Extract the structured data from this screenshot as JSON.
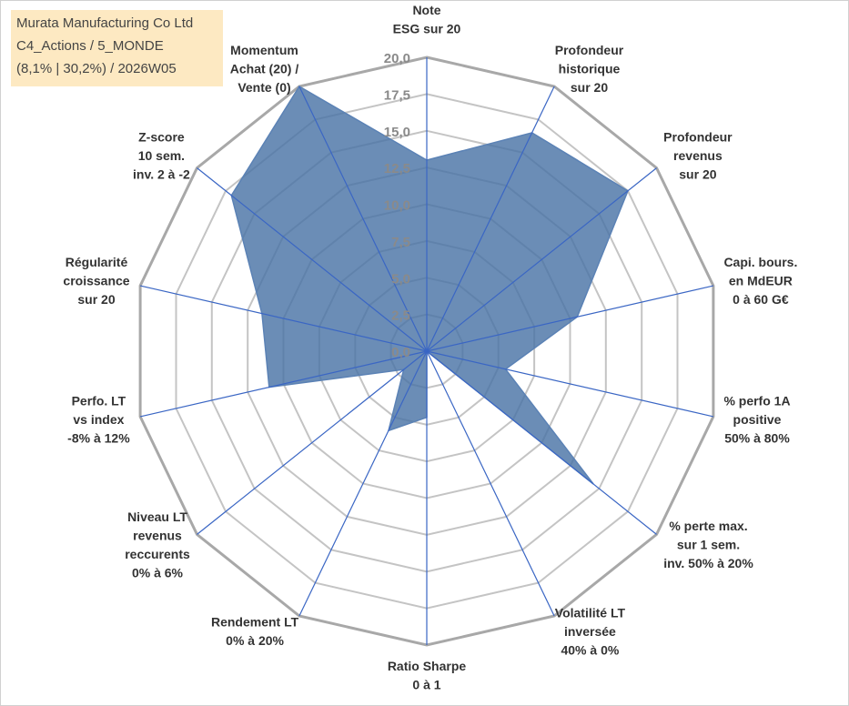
{
  "caption": {
    "line1": "Murata Manufacturing Co Ltd",
    "line2": "C4_Actions / 5_MONDE",
    "line3": "(8,1% | 30,2%) / 2026W05"
  },
  "chart_data": {
    "type": "radar",
    "title": "",
    "rlim": [
      0,
      20
    ],
    "ticks": [
      "0,0",
      "2,5",
      "5,0",
      "7,5",
      "10,0",
      "12,5",
      "15,0",
      "17,5",
      "20,0"
    ],
    "tick_values": [
      0,
      2.5,
      5,
      7.5,
      10,
      12.5,
      15,
      17.5,
      20
    ],
    "axes": [
      [
        "Note",
        "ESG sur 20"
      ],
      [
        "Profondeur",
        "historique",
        "sur 20"
      ],
      [
        "Profondeur",
        "revenus",
        "sur 20"
      ],
      [
        "Capi. bours.",
        "en MdEUR",
        "0 à 60 G€"
      ],
      [
        "% perfo 1A",
        "positive",
        "50% à 80%"
      ],
      [
        "% perte max.",
        "sur 1 sem.",
        "inv. 50% à 20%"
      ],
      [
        "Volatilité LT",
        "inversée",
        "40% à 0%"
      ],
      [
        "Ratio Sharpe",
        "0 à 1"
      ],
      [
        "Rendement LT",
        "0% à 20%"
      ],
      [
        "Niveau LT",
        "revenus",
        "reccurents",
        "0% à 6%"
      ],
      [
        "Perfo. LT",
        "vs index",
        "-8% à 12%"
      ],
      [
        "Régularité",
        "croissance",
        "sur 20"
      ],
      [
        "Z-score",
        "10 sem.",
        "inv. 2 à -2"
      ],
      [
        "Momentum",
        "Achat (20) /",
        "Vente (0)"
      ]
    ],
    "series": [
      {
        "name": "Murata Manufacturing Co Ltd",
        "values": [
          13.0,
          16.5,
          17.5,
          10.5,
          5.5,
          14.5,
          0.0,
          4.5,
          6.0,
          2.0,
          11.0,
          11.5,
          17.0,
          20.0
        ]
      }
    ],
    "colors": {
      "fill": "#4a74a6",
      "stroke": "#5b82b5",
      "spoke": "#3a66c4",
      "grid": "#c4c4c4",
      "outer": "#a8a8a8"
    }
  }
}
